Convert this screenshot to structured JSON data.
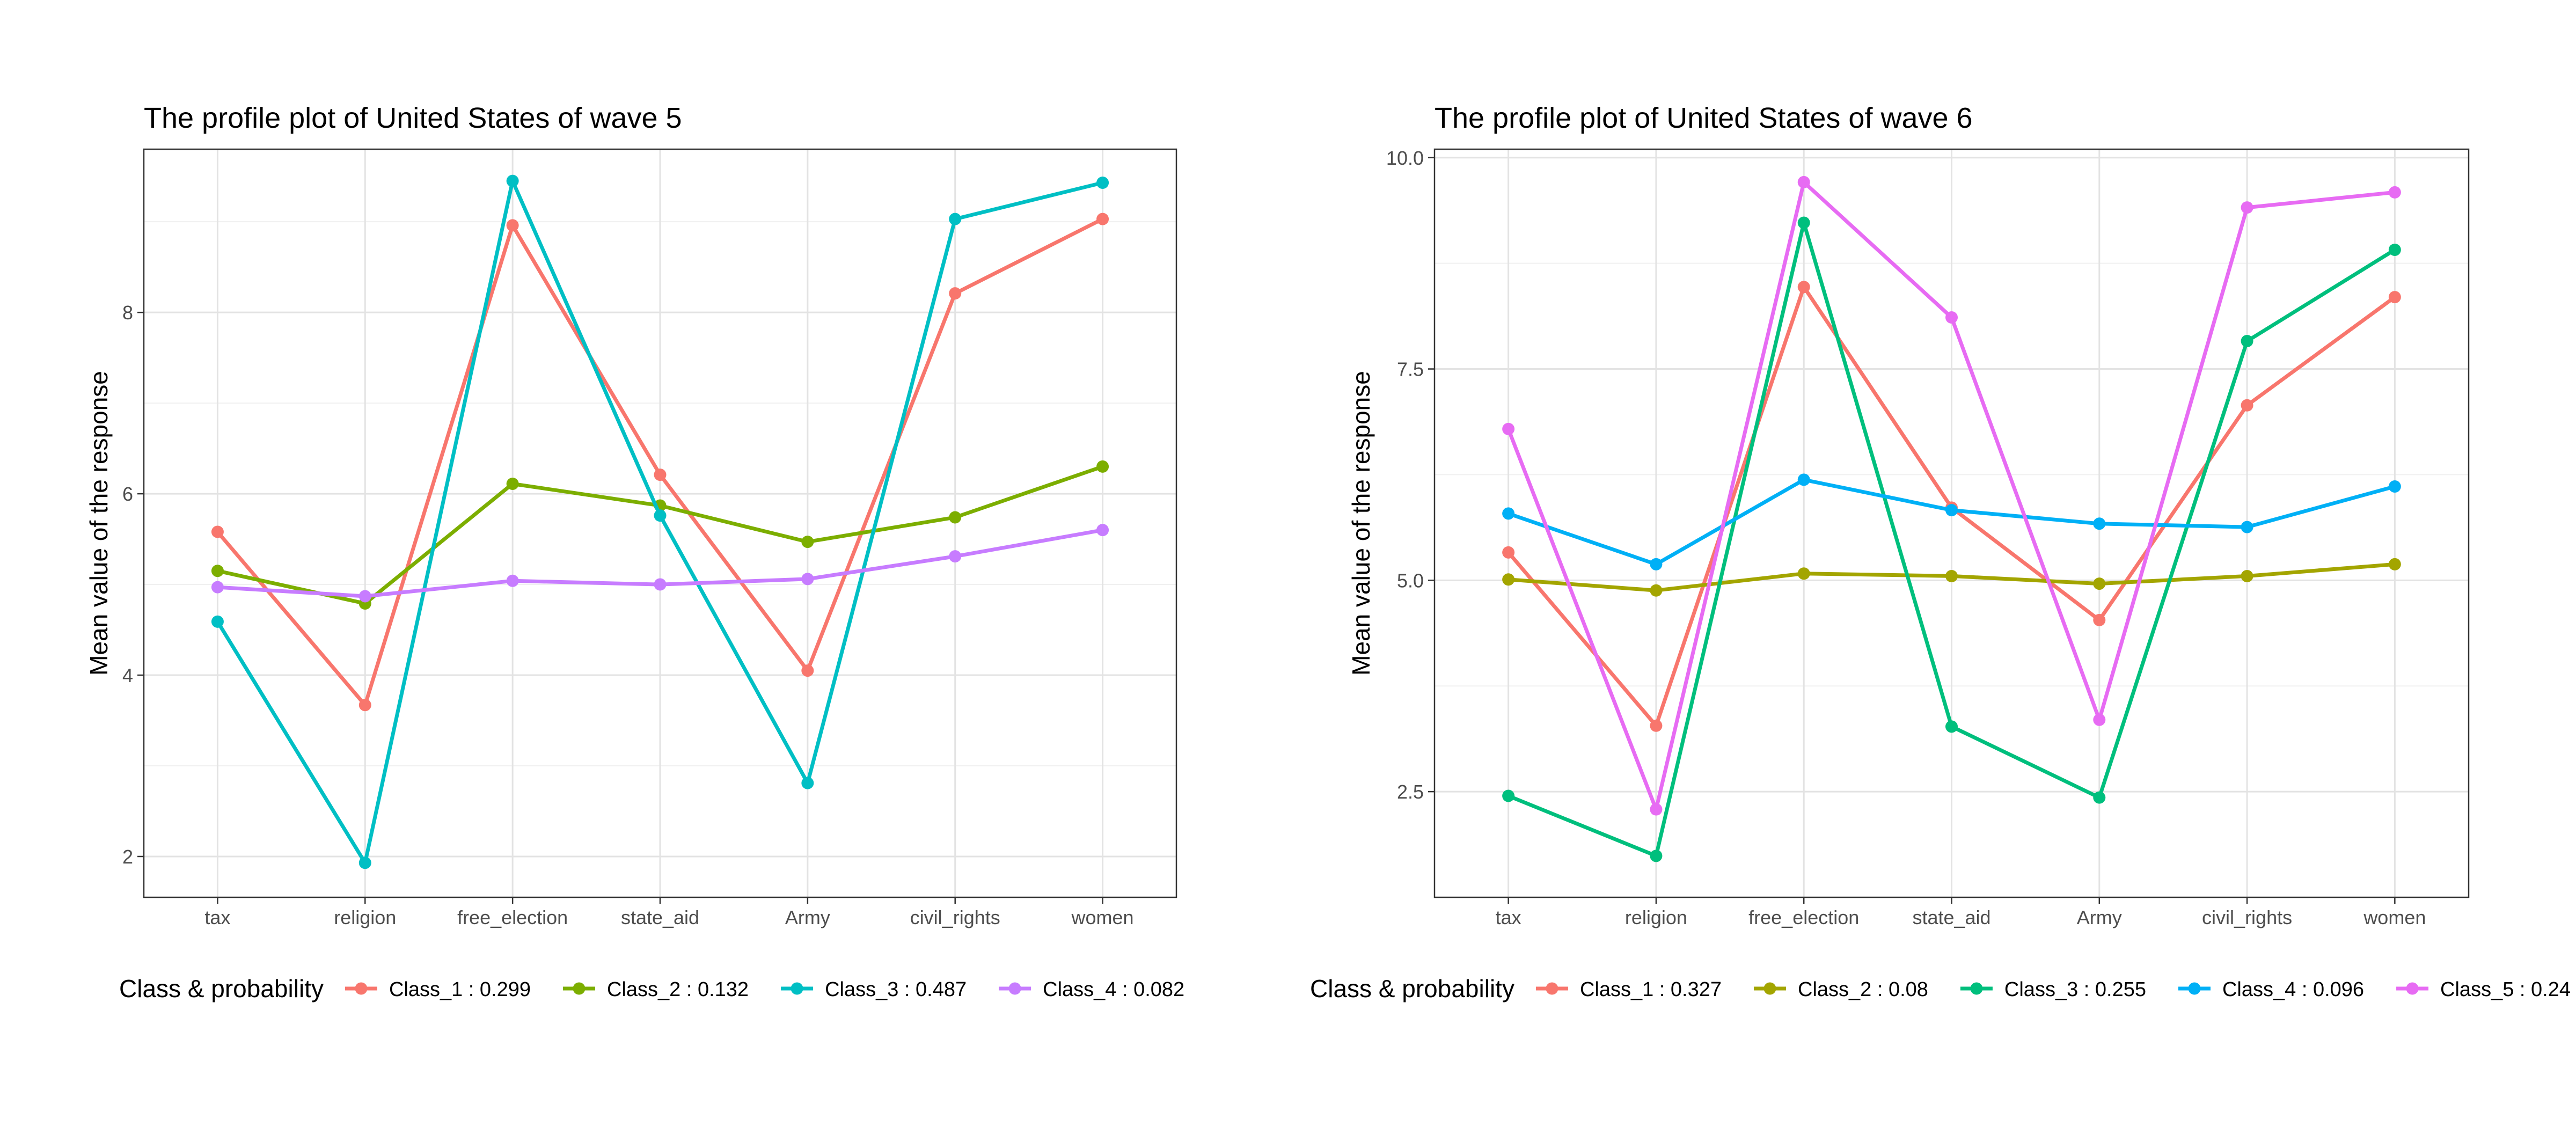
{
  "chart_data": [
    {
      "type": "line",
      "title": "The profile plot of United States of wave 5",
      "xlabel": "",
      "ylabel": "Mean value of the response",
      "categories": [
        "tax",
        "religion",
        "free_election",
        "state_aid",
        "Army",
        "civil_rights",
        "women"
      ],
      "ylim": [
        1.55,
        9.8
      ],
      "yticks": [
        2,
        4,
        6,
        8
      ],
      "yticks_labels": [
        "2",
        "4",
        "6",
        "8"
      ],
      "grid": true,
      "legend_title": "Class & probability",
      "legend_position": "bottom",
      "series": [
        {
          "name": "Class_1 : 0.299",
          "color": "#F8766D",
          "values": [
            5.58,
            3.67,
            8.96,
            6.21,
            4.05,
            8.21,
            9.03
          ]
        },
        {
          "name": "Class_2 : 0.132",
          "color": "#7CAE00",
          "values": [
            5.15,
            4.79,
            6.11,
            5.87,
            5.47,
            5.74,
            6.3
          ]
        },
        {
          "name": "Class_3 : 0.487",
          "color": "#00BFC4",
          "values": [
            4.59,
            1.93,
            9.45,
            5.76,
            2.81,
            9.03,
            9.43
          ]
        },
        {
          "name": "Class_4 : 0.082",
          "color": "#C77CFF",
          "values": [
            4.97,
            4.87,
            5.04,
            5.0,
            5.06,
            5.31,
            5.6
          ]
        }
      ]
    },
    {
      "type": "line",
      "title": "The profile plot of United States of wave 6",
      "xlabel": "",
      "ylabel": "Mean value of the response",
      "categories": [
        "tax",
        "religion",
        "free_election",
        "state_aid",
        "Army",
        "civil_rights",
        "women"
      ],
      "ylim": [
        1.25,
        10.1
      ],
      "yticks": [
        2.5,
        5.0,
        7.5,
        10.0
      ],
      "yticks_labels": [
        "2.5",
        "5.0",
        "7.5",
        "10.0"
      ],
      "grid": true,
      "legend_title": "Class & probability",
      "legend_position": "bottom",
      "series": [
        {
          "name": "Class_1 : 0.327",
          "color": "#F8766D",
          "values": [
            5.33,
            3.28,
            8.47,
            5.86,
            4.53,
            7.07,
            8.35
          ]
        },
        {
          "name": "Class_2 : 0.08",
          "color": "#A3A500",
          "values": [
            5.01,
            4.88,
            5.08,
            5.05,
            4.96,
            5.05,
            5.19
          ]
        },
        {
          "name": "Class_3 : 0.255",
          "color": "#00BF7D",
          "values": [
            2.45,
            1.74,
            9.23,
            3.27,
            2.43,
            7.83,
            8.91
          ]
        },
        {
          "name": "Class_4 : 0.096",
          "color": "#00B0F6",
          "values": [
            5.79,
            5.19,
            6.19,
            5.83,
            5.67,
            5.63,
            6.11
          ]
        },
        {
          "name": "Class_5 : 0.24",
          "color": "#E76BF3",
          "values": [
            6.79,
            2.29,
            9.71,
            8.11,
            3.35,
            9.41,
            9.59
          ]
        }
      ]
    }
  ]
}
